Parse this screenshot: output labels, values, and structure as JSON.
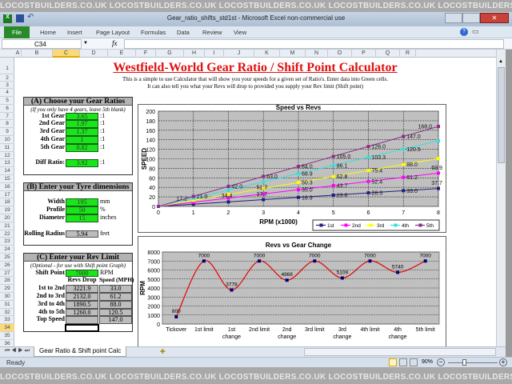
{
  "watermark": "LOCOSTBUILDERS.CO.UK",
  "window": {
    "title": "Gear_ratio_shifts_std1st  -  Microsoft Excel non-commercial use"
  },
  "ribbon": {
    "tabs": [
      "File",
      "Home",
      "Insert",
      "Page Layout",
      "Formulas",
      "Data",
      "Review",
      "View"
    ]
  },
  "formula_bar": {
    "name_box": "C34",
    "fx": "fx",
    "value": ""
  },
  "columns": [
    "A",
    "B",
    "C",
    "D",
    "E",
    "F",
    "G",
    "H",
    "I",
    "J",
    "K",
    "M",
    "N",
    "O",
    "P",
    "Q",
    "R"
  ],
  "selected_column": "C",
  "selected_row": "34",
  "rows": [
    "1",
    "2",
    "3",
    "4",
    "5",
    "6",
    "7",
    "8",
    "9",
    "10",
    "11",
    "12",
    "13",
    "14",
    "15",
    "16",
    "17",
    "18",
    "19",
    "20",
    "21",
    "22",
    "23",
    "24",
    "25",
    "26",
    "27",
    "28",
    "29",
    "30",
    "31",
    "32",
    "33",
    "34",
    "35",
    "36"
  ],
  "sheet": {
    "title": "Westfield-World Gear Ratio / Shift Point Calculator",
    "intro1": "This is a simple to use Calculator that will show you your speeds for a given set of Ratio's. Enter data into Green cells.",
    "intro2": "It can also tell you what your Revs will drop to provided you supply your Rev limit (Shift point)",
    "sectionA": {
      "header": "(A) Choose your Gear Ratios",
      "note": "(If you only have 4 gears, leave 5th blank)",
      "gears": [
        {
          "label": "1st Gear",
          "value": "3.65",
          "unit": ":1"
        },
        {
          "label": "2nd Gear",
          "value": "1.97",
          "unit": ":1"
        },
        {
          "label": "3rd Gear",
          "value": "1.37",
          "unit": ":1"
        },
        {
          "label": "4th Gear",
          "value": "1",
          "unit": ":1"
        },
        {
          "label": "5th Gear",
          "value": "0.82",
          "unit": ":1"
        }
      ],
      "diff": {
        "label": "Diff Ratio:",
        "value": "3.92",
        "unit": ":1"
      }
    },
    "sectionB": {
      "header": "(B) Enter your Tyre dimensions",
      "fields": [
        {
          "label": "Width",
          "value": "195",
          "unit": "mm"
        },
        {
          "label": "Profile",
          "value": "50",
          "unit": "%"
        },
        {
          "label": "Diameter",
          "value": "15",
          "unit": "inches"
        }
      ],
      "rolling": {
        "label": "Rolling Radius",
        "value": "5.94",
        "unit": "feet"
      }
    },
    "sectionC": {
      "header": "(C) Enter your Rev Limit",
      "note": "(Optional - for use with Shift point Graph)",
      "shift": {
        "label": "Shift Point",
        "value": "7000",
        "unit": "RPM"
      },
      "col1": "Revs Drop",
      "col2": "Speed (MPH)",
      "rows": [
        {
          "label": "1st to 2nd",
          "drop": "3221.9",
          "speed": "33.0"
        },
        {
          "label": "2nd to 3rd",
          "drop": "2132.0",
          "speed": "61.2"
        },
        {
          "label": "3rd to 4th",
          "drop": "1890.5",
          "speed": "88.0"
        },
        {
          "label": "4th to 5th",
          "drop": "1260.0",
          "speed": "120.5"
        },
        {
          "label": "Top Speed",
          "drop": "",
          "speed": "147.0"
        }
      ]
    }
  },
  "sheet_tab": "Gear Ratio & Shift point Calc",
  "status": {
    "ready": "Ready",
    "zoom": "90%"
  },
  "chart_data": [
    {
      "type": "line",
      "title": "Speed vs Revs",
      "xlabel": "RPM (x1000)",
      "ylabel": "SPEED",
      "xlim": [
        0,
        8
      ],
      "ylim": [
        0,
        200
      ],
      "yticks": [
        0,
        20,
        40,
        60,
        80,
        100,
        120,
        140,
        160,
        180,
        200
      ],
      "xticks": [
        0,
        1,
        2,
        3,
        4,
        5,
        6,
        7,
        8
      ],
      "grid": true,
      "legend": "bottom-right",
      "x": [
        0,
        1,
        2,
        3,
        4,
        5,
        6,
        7,
        8
      ],
      "series": [
        {
          "name": "1st",
          "color": "#1f1f7a",
          "values": [
            0,
            4.7,
            9.4,
            14.2,
            18.9,
            23.6,
            28.3,
            33.0,
            37.7
          ]
        },
        {
          "name": "2nd",
          "color": "#ff00ff",
          "values": [
            0,
            8.7,
            17.5,
            26.2,
            35.0,
            43.7,
            52.4,
            61.2,
            69.9
          ]
        },
        {
          "name": "3rd",
          "color": "#ffff00",
          "values": [
            0,
            12.6,
            25.1,
            37.7,
            50.3,
            62.8,
            75.4,
            88.0,
            100.5
          ]
        },
        {
          "name": "4th",
          "color": "#33e0e0",
          "values": [
            0,
            17.2,
            34.4,
            51.7,
            68.9,
            86.1,
            103.3,
            120.5,
            137.7
          ]
        },
        {
          "name": "5th",
          "color": "#8a2f8a",
          "values": [
            0,
            21.0,
            42.0,
            63.0,
            84.0,
            105.0,
            126.0,
            147.0,
            168.0
          ]
        }
      ]
    },
    {
      "type": "line",
      "title": "Revs vs Gear Change",
      "ylabel": "RPM",
      "ylim": [
        0,
        8000
      ],
      "yticks": [
        0,
        1000,
        2000,
        3000,
        4000,
        5000,
        6000,
        7000,
        8000
      ],
      "grid": true,
      "categories": [
        "Tickover",
        "1st limit",
        "1st change",
        "2nd limit",
        "2nd change",
        "3rd limit",
        "3rd change",
        "4th limit",
        "4th change",
        "5th limit"
      ],
      "values": [
        800,
        7000,
        3778,
        7000,
        4868,
        7000,
        5109,
        7000,
        5740,
        7000
      ],
      "line_color": "#e01010",
      "marker_color": "#000080"
    }
  ]
}
